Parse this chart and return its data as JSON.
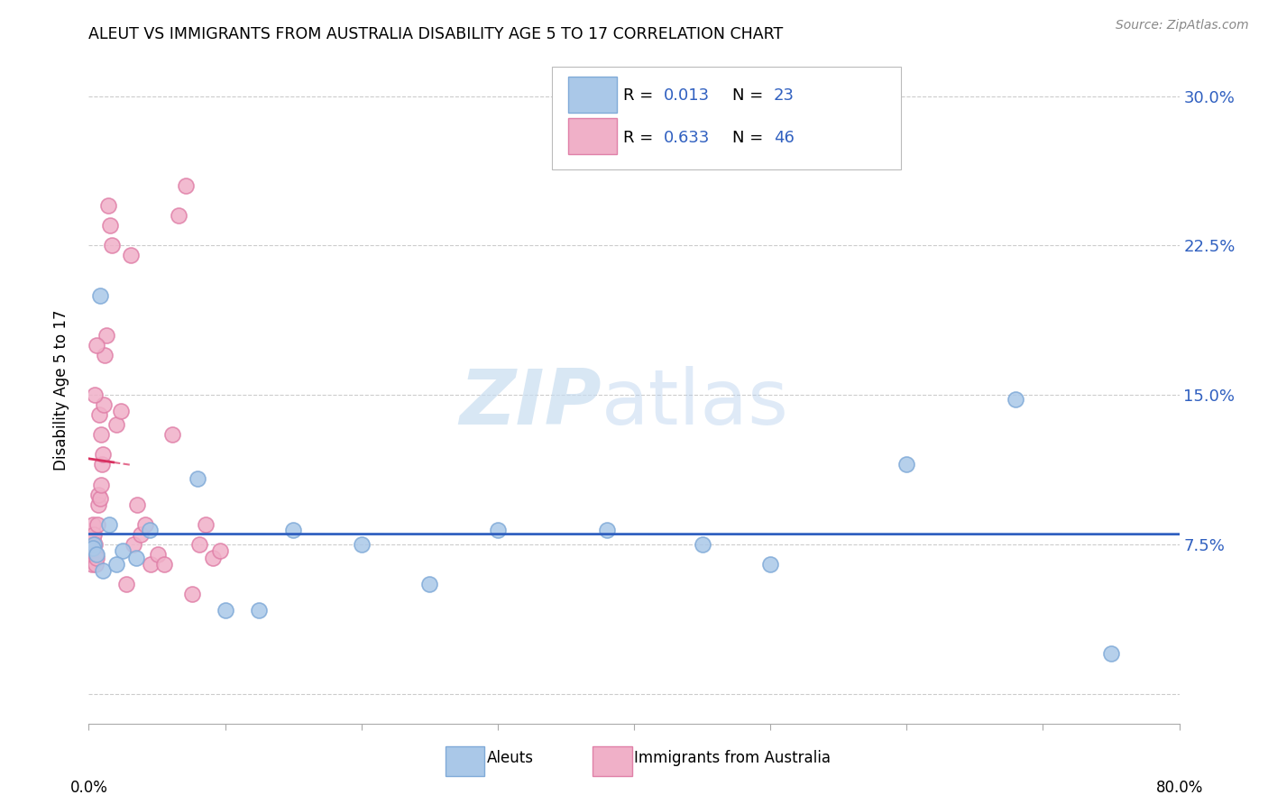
{
  "title": "ALEUT VS IMMIGRANTS FROM AUSTRALIA DISABILITY AGE 5 TO 17 CORRELATION CHART",
  "source": "Source: ZipAtlas.com",
  "ylabel": "Disability Age 5 to 17",
  "xlim": [
    0.0,
    80.0
  ],
  "ylim": [
    -1.5,
    32.0
  ],
  "y_ticks": [
    0.0,
    7.5,
    15.0,
    22.5,
    30.0
  ],
  "y_tick_labels": [
    "",
    "7.5%",
    "15.0%",
    "22.5%",
    "30.0%"
  ],
  "aleut_color": "#aac8e8",
  "aleut_edge": "#80aad8",
  "australia_color": "#f0b0c8",
  "australia_edge": "#e080a8",
  "trend_aleut_color": "#3060c0",
  "trend_australia_color": "#d83060",
  "aleut_scatter_x": [
    0.4,
    0.8,
    1.5,
    2.5,
    4.5,
    8.0,
    10.0,
    12.5,
    15.0,
    20.0,
    25.0,
    30.0,
    38.0,
    50.0,
    60.0,
    68.0,
    75.0,
    0.3,
    0.6,
    1.0,
    2.0,
    3.5,
    45.0
  ],
  "aleut_scatter_y": [
    7.5,
    20.0,
    8.5,
    7.2,
    8.2,
    10.8,
    4.2,
    4.2,
    8.2,
    7.5,
    5.5,
    8.2,
    8.2,
    6.5,
    11.5,
    14.8,
    2.0,
    7.3,
    7.0,
    6.2,
    6.5,
    6.8,
    7.5
  ],
  "australia_scatter_x": [
    0.12,
    0.18,
    0.22,
    0.28,
    0.32,
    0.38,
    0.42,
    0.48,
    0.52,
    0.58,
    0.62,
    0.68,
    0.72,
    0.78,
    0.82,
    0.88,
    0.92,
    0.98,
    1.02,
    1.08,
    1.18,
    1.28,
    1.42,
    1.55,
    1.72,
    2.02,
    2.35,
    2.75,
    3.05,
    3.25,
    3.52,
    3.82,
    4.12,
    4.55,
    5.05,
    5.55,
    6.1,
    6.6,
    7.1,
    7.6,
    8.1,
    8.6,
    9.1,
    9.6,
    0.45,
    0.55
  ],
  "australia_scatter_y": [
    7.2,
    7.0,
    6.5,
    7.8,
    8.5,
    8.0,
    7.5,
    7.0,
    6.5,
    6.8,
    8.5,
    9.5,
    10.0,
    14.0,
    9.8,
    10.5,
    13.0,
    11.5,
    12.0,
    14.5,
    17.0,
    18.0,
    24.5,
    23.5,
    22.5,
    13.5,
    14.2,
    5.5,
    22.0,
    7.5,
    9.5,
    8.0,
    8.5,
    6.5,
    7.0,
    6.5,
    13.0,
    24.0,
    25.5,
    5.0,
    7.5,
    8.5,
    6.8,
    7.2,
    15.0,
    17.5
  ]
}
